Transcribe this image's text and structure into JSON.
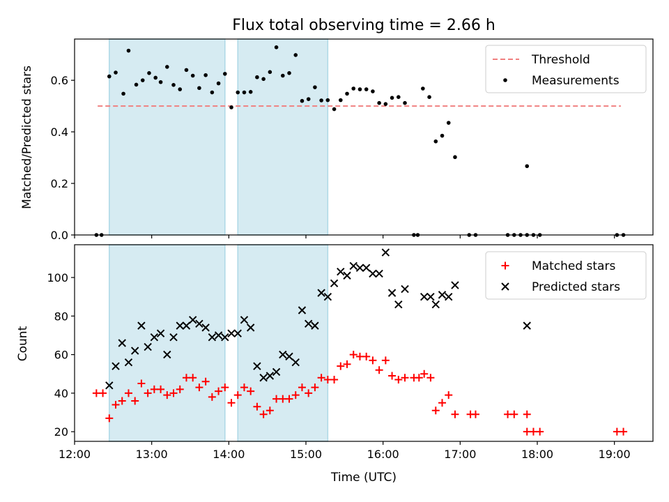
{
  "chart_data": [
    {
      "type": "scatter",
      "title": "Flux total observing time = 2.66 h",
      "xlabel": "",
      "ylabel": "Matched/Predicted stars",
      "xlim": [
        "12:00",
        "19:30"
      ],
      "ylim": [
        0,
        0.76
      ],
      "x_tick_labels": [
        "12:00",
        "13:00",
        "14:00",
        "15:00",
        "16:00",
        "17:00",
        "18:00",
        "19:00"
      ],
      "y_ticks": [
        "0.0",
        "0.2",
        "0.4",
        "0.6"
      ],
      "shaded_intervals": [
        [
          "12:27",
          "13:57"
        ],
        [
          "14:07",
          "15:17"
        ]
      ],
      "legend_position": "upper right",
      "threshold": {
        "name": "Threshold",
        "value": 0.5,
        "x_start": "12:18",
        "x_end": "19:05",
        "color": "#f08080"
      },
      "series": [
        {
          "name": "Measurements",
          "color": "#000000",
          "points": [
            [
              "12:17",
              0.0
            ],
            [
              "12:21",
              0.0
            ],
            [
              "12:27",
              0.615
            ],
            [
              "12:32",
              0.63
            ],
            [
              "12:38",
              0.548
            ],
            [
              "12:42",
              0.715
            ],
            [
              "12:48",
              0.583
            ],
            [
              "12:53",
              0.6
            ],
            [
              "12:58",
              0.628
            ],
            [
              "13:03",
              0.61
            ],
            [
              "13:07",
              0.593
            ],
            [
              "13:12",
              0.652
            ],
            [
              "13:17",
              0.582
            ],
            [
              "13:22",
              0.565
            ],
            [
              "13:27",
              0.64
            ],
            [
              "13:32",
              0.618
            ],
            [
              "13:37",
              0.57
            ],
            [
              "13:42",
              0.62
            ],
            [
              "13:47",
              0.553
            ],
            [
              "13:52",
              0.588
            ],
            [
              "13:57",
              0.625
            ],
            [
              "14:02",
              0.495
            ],
            [
              "14:07",
              0.553
            ],
            [
              "14:12",
              0.553
            ],
            [
              "14:17",
              0.555
            ],
            [
              "14:22",
              0.612
            ],
            [
              "14:27",
              0.605
            ],
            [
              "14:32",
              0.632
            ],
            [
              "14:37",
              0.728
            ],
            [
              "14:42",
              0.618
            ],
            [
              "14:47",
              0.628
            ],
            [
              "14:52",
              0.698
            ],
            [
              "14:57",
              0.52
            ],
            [
              "15:02",
              0.527
            ],
            [
              "15:07",
              0.573
            ],
            [
              "15:12",
              0.522
            ],
            [
              "15:17",
              0.523
            ],
            [
              "15:22",
              0.488
            ],
            [
              "15:27",
              0.523
            ],
            [
              "15:32",
              0.548
            ],
            [
              "15:37",
              0.568
            ],
            [
              "15:42",
              0.565
            ],
            [
              "15:47",
              0.565
            ],
            [
              "15:52",
              0.557
            ],
            [
              "15:57",
              0.512
            ],
            [
              "16:02",
              0.508
            ],
            [
              "16:07",
              0.532
            ],
            [
              "16:12",
              0.535
            ],
            [
              "16:17",
              0.512
            ],
            [
              "16:24",
              0.0
            ],
            [
              "16:27",
              0.0
            ],
            [
              "16:31",
              0.568
            ],
            [
              "16:36",
              0.535
            ],
            [
              "16:41",
              0.363
            ],
            [
              "16:46",
              0.385
            ],
            [
              "16:51",
              0.435
            ],
            [
              "16:56",
              0.302
            ],
            [
              "17:07",
              0.0
            ],
            [
              "17:12",
              0.0
            ],
            [
              "17:37",
              0.0
            ],
            [
              "17:42",
              0.0
            ],
            [
              "17:47",
              0.0
            ],
            [
              "17:52",
              0.0
            ],
            [
              "17:52",
              0.267
            ],
            [
              "17:57",
              0.0
            ],
            [
              "18:02",
              0.0
            ],
            [
              "19:02",
              0.0
            ],
            [
              "19:07",
              0.0
            ]
          ]
        }
      ]
    },
    {
      "type": "scatter",
      "title": "",
      "xlabel": "Time (UTC)",
      "ylabel": "Count",
      "xlim": [
        "12:00",
        "19:30"
      ],
      "ylim": [
        15,
        117
      ],
      "x_tick_labels": [
        "12:00",
        "13:00",
        "14:00",
        "15:00",
        "16:00",
        "17:00",
        "18:00",
        "19:00"
      ],
      "y_ticks": [
        "20",
        "40",
        "60",
        "80",
        "100"
      ],
      "shaded_intervals": [
        [
          "12:27",
          "13:57"
        ],
        [
          "14:07",
          "15:17"
        ]
      ],
      "legend_position": "upper right",
      "series": [
        {
          "name": "Matched stars",
          "color": "#ff0000",
          "marker": "+",
          "points": [
            [
              "12:17",
              40
            ],
            [
              "12:22",
              40
            ],
            [
              "12:27",
              27
            ],
            [
              "12:32",
              34
            ],
            [
              "12:37",
              36
            ],
            [
              "12:42",
              40
            ],
            [
              "12:47",
              36
            ],
            [
              "12:52",
              45
            ],
            [
              "12:57",
              40
            ],
            [
              "13:02",
              42
            ],
            [
              "13:07",
              42
            ],
            [
              "13:12",
              39
            ],
            [
              "13:17",
              40
            ],
            [
              "13:22",
              42
            ],
            [
              "13:27",
              48
            ],
            [
              "13:32",
              48
            ],
            [
              "13:37",
              43
            ],
            [
              "13:42",
              46
            ],
            [
              "13:47",
              38
            ],
            [
              "13:52",
              41
            ],
            [
              "13:57",
              43
            ],
            [
              "14:02",
              35
            ],
            [
              "14:07",
              39
            ],
            [
              "14:12",
              43
            ],
            [
              "14:17",
              41
            ],
            [
              "14:22",
              33
            ],
            [
              "14:27",
              29
            ],
            [
              "14:32",
              31
            ],
            [
              "14:37",
              37
            ],
            [
              "14:42",
              37
            ],
            [
              "14:47",
              37
            ],
            [
              "14:52",
              39
            ],
            [
              "14:57",
              43
            ],
            [
              "15:02",
              40
            ],
            [
              "15:07",
              43
            ],
            [
              "15:12",
              48
            ],
            [
              "15:17",
              47
            ],
            [
              "15:22",
              47
            ],
            [
              "15:27",
              54
            ],
            [
              "15:32",
              55
            ],
            [
              "15:37",
              60
            ],
            [
              "15:42",
              59
            ],
            [
              "15:47",
              59
            ],
            [
              "15:52",
              57
            ],
            [
              "15:57",
              52
            ],
            [
              "16:02",
              57
            ],
            [
              "16:07",
              49
            ],
            [
              "16:12",
              47
            ],
            [
              "16:17",
              48
            ],
            [
              "16:24",
              48
            ],
            [
              "16:28",
              48
            ],
            [
              "16:32",
              50
            ],
            [
              "16:37",
              48
            ],
            [
              "16:41",
              31
            ],
            [
              "16:46",
              35
            ],
            [
              "16:51",
              39
            ],
            [
              "16:56",
              29
            ],
            [
              "17:08",
              29
            ],
            [
              "17:12",
              29
            ],
            [
              "17:37",
              29
            ],
            [
              "17:42",
              29
            ],
            [
              "17:52",
              29
            ],
            [
              "17:52",
              20
            ],
            [
              "17:57",
              20
            ],
            [
              "18:02",
              20
            ],
            [
              "19:02",
              20
            ],
            [
              "19:07",
              20
            ]
          ]
        },
        {
          "name": "Predicted stars",
          "color": "#000000",
          "marker": "x",
          "points": [
            [
              "12:27",
              44
            ],
            [
              "12:32",
              54
            ],
            [
              "12:37",
              66
            ],
            [
              "12:42",
              56
            ],
            [
              "12:47",
              62
            ],
            [
              "12:52",
              75
            ],
            [
              "12:57",
              64
            ],
            [
              "13:02",
              69
            ],
            [
              "13:07",
              71
            ],
            [
              "13:12",
              60
            ],
            [
              "13:17",
              69
            ],
            [
              "13:22",
              75
            ],
            [
              "13:27",
              75
            ],
            [
              "13:32",
              78
            ],
            [
              "13:37",
              76
            ],
            [
              "13:42",
              74
            ],
            [
              "13:47",
              69
            ],
            [
              "13:52",
              70
            ],
            [
              "13:57",
              69
            ],
            [
              "14:02",
              71
            ],
            [
              "14:07",
              71
            ],
            [
              "14:12",
              78
            ],
            [
              "14:17",
              74
            ],
            [
              "14:22",
              54
            ],
            [
              "14:27",
              48
            ],
            [
              "14:32",
              49
            ],
            [
              "14:37",
              51
            ],
            [
              "14:42",
              60
            ],
            [
              "14:47",
              59
            ],
            [
              "14:52",
              56
            ],
            [
              "14:57",
              83
            ],
            [
              "15:02",
              76
            ],
            [
              "15:07",
              75
            ],
            [
              "15:12",
              92
            ],
            [
              "15:17",
              90
            ],
            [
              "15:22",
              97
            ],
            [
              "15:27",
              103
            ],
            [
              "15:32",
              101
            ],
            [
              "15:37",
              106
            ],
            [
              "15:42",
              105
            ],
            [
              "15:47",
              105
            ],
            [
              "15:52",
              102
            ],
            [
              "15:57",
              102
            ],
            [
              "16:02",
              113
            ],
            [
              "16:07",
              92
            ],
            [
              "16:12",
              86
            ],
            [
              "16:17",
              94
            ],
            [
              "16:32",
              90
            ],
            [
              "16:37",
              90
            ],
            [
              "16:41",
              86
            ],
            [
              "16:46",
              91
            ],
            [
              "16:51",
              90
            ],
            [
              "16:56",
              96
            ],
            [
              "17:52",
              75
            ]
          ]
        }
      ]
    }
  ]
}
